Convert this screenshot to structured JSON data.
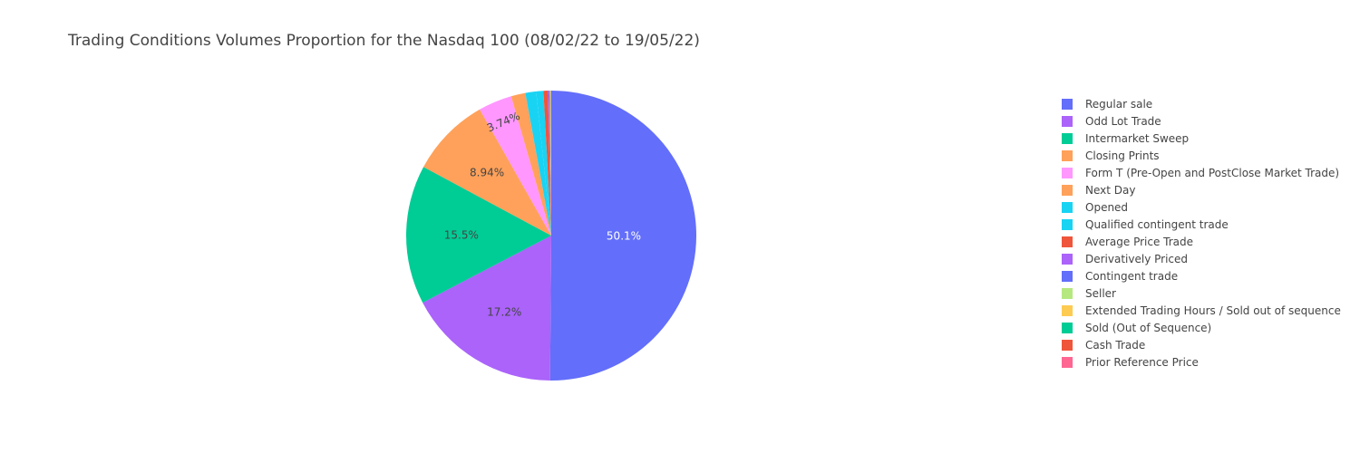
{
  "chart_data": {
    "type": "pie",
    "title": "Trading Conditions Volumes Proportion for the Nasdaq 100 (08/02/22 to 19/05/22)",
    "legend_position": "right",
    "shown_percent_labels": [
      "50.1%",
      "17.2%",
      "15.5%",
      "8.94%",
      "3.74%"
    ],
    "slices": [
      {
        "label": "Regular sale",
        "percent": 50.1,
        "color": "#636efa",
        "label_color": "#ffffff"
      },
      {
        "label": "Odd Lot Trade",
        "percent": 17.2,
        "color": "#ab63fa",
        "label_color": "#444444"
      },
      {
        "label": "Intermarket Sweep",
        "percent": 15.5,
        "color": "#00cc96",
        "label_color": "#444444"
      },
      {
        "label": "Closing Prints",
        "percent": 8.94,
        "color": "#ffa15a",
        "label_color": "#444444"
      },
      {
        "label": "Form T (Pre-Open and PostClose Market Trade)",
        "percent": 3.74,
        "color": "#ff97ff",
        "label_color": "#444444"
      },
      {
        "label": "Next Day",
        "percent": 1.6,
        "color": "#ffa15a"
      },
      {
        "label": "Opened",
        "percent": 1.2,
        "color": "#19d3f3"
      },
      {
        "label": "Qualified contingent trade",
        "percent": 0.8,
        "color": "#19d3f3"
      },
      {
        "label": "Average Price Trade",
        "percent": 0.5,
        "color": "#ef553b"
      },
      {
        "label": "Derivatively Priced",
        "percent": 0.1,
        "color": "#ab63fa"
      },
      {
        "label": "Contingent trade",
        "percent": 0.1,
        "color": "#636efa"
      },
      {
        "label": "Seller",
        "percent": 0.05,
        "color": "#b6e880"
      },
      {
        "label": "Extended Trading Hours / Sold out of sequence",
        "percent": 0.05,
        "color": "#fecb52"
      },
      {
        "label": "Sold (Out of Sequence)",
        "percent": 0.03,
        "color": "#00cc96"
      },
      {
        "label": "Cash Trade",
        "percent": 0.02,
        "color": "#ef553b"
      },
      {
        "label": "Prior Reference Price",
        "percent": 0.01,
        "color": "#ff6692"
      }
    ]
  }
}
